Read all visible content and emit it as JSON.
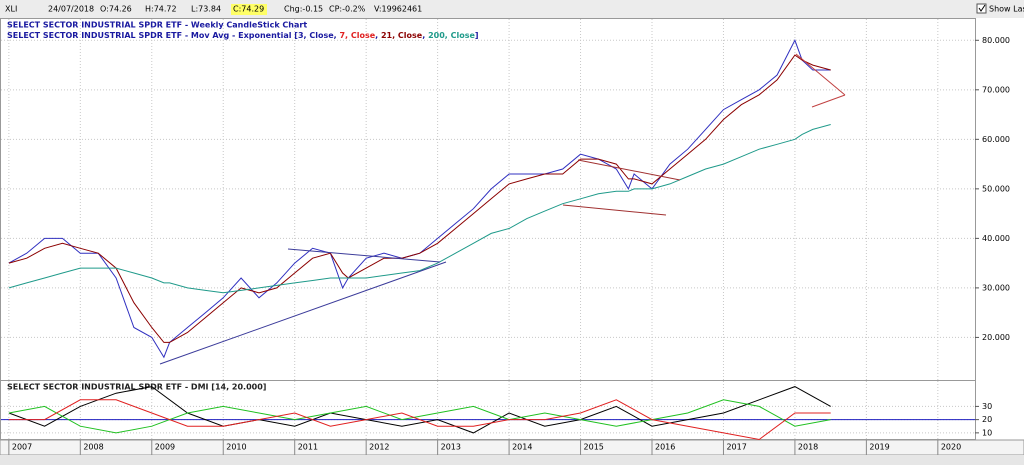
{
  "header": {
    "symbol": "XLI",
    "date": "24/07/2018",
    "open": "O:74.26",
    "high": "H:74.72",
    "low": "L:73.84",
    "close": "C:74.29",
    "change": "Chg:-0.15",
    "change_pct": "CP:-0.2%",
    "volume": "V:19962461",
    "show_last": "Show Last"
  },
  "chart_data": [
    {
      "type": "line",
      "title": "SELECT SECTOR INDUSTRIAL SPDR ETF - Weekly CandleStick Chart",
      "subtitle": [
        {
          "text": "SELECT SECTOR INDUSTRIAL SPDR ETF - Mov Avg - Exponential [",
          "color": "#1a1aa0"
        },
        {
          "text": "3, Close",
          "color": "#1a1aa0"
        },
        {
          "text": ", ",
          "color": "#1a1aa0"
        },
        {
          "text": "7, Close",
          "color": "#e02020"
        },
        {
          "text": ", ",
          "color": "#1a1aa0"
        },
        {
          "text": "21, Close",
          "color": "#8b0000"
        },
        {
          "text": ", ",
          "color": "#1a1aa0"
        },
        {
          "text": "200, Close",
          "color": "#1f9a8a"
        },
        {
          "text": "]",
          "color": "#1a1aa0"
        }
      ],
      "xlim": [
        2006.89,
        2020.52
      ],
      "ylim": [
        11.4,
        84.3
      ],
      "yticks": [
        {
          "value": 20,
          "label": "20.000"
        },
        {
          "value": 30,
          "label": "30.000"
        },
        {
          "value": 40,
          "label": "40.000"
        },
        {
          "value": 50,
          "label": "50.000"
        },
        {
          "value": 60,
          "label": "60.000"
        },
        {
          "value": 70,
          "label": "70.000"
        },
        {
          "value": 80,
          "label": "80.000"
        }
      ],
      "x": [
        2007.0,
        2007.25,
        2007.5,
        2007.75,
        2008.0,
        2008.25,
        2008.5,
        2008.75,
        2009.0,
        2009.17,
        2009.25,
        2009.5,
        2009.75,
        2010.0,
        2010.25,
        2010.5,
        2010.75,
        2011.0,
        2011.25,
        2011.5,
        2011.67,
        2011.75,
        2012.0,
        2012.25,
        2012.5,
        2012.75,
        2013.0,
        2013.25,
        2013.5,
        2013.75,
        2014.0,
        2014.25,
        2014.5,
        2014.75,
        2015.0,
        2015.25,
        2015.5,
        2015.67,
        2015.75,
        2016.0,
        2016.25,
        2016.5,
        2016.75,
        2017.0,
        2017.25,
        2017.5,
        2017.75,
        2018.0,
        2018.1,
        2018.25,
        2018.5
      ],
      "series": [
        {
          "color": "#3030c0",
          "values": [
            35,
            37,
            40,
            40,
            37,
            37,
            32,
            22,
            20,
            16,
            19,
            22,
            25,
            28,
            32,
            28,
            31,
            35,
            38,
            37,
            30,
            32,
            36,
            37,
            36,
            37,
            40,
            43,
            46,
            50,
            53,
            53,
            53,
            54,
            57,
            56,
            54,
            50,
            53,
            50,
            55,
            58,
            62,
            66,
            68,
            70,
            73,
            80,
            76,
            74,
            74
          ]
        },
        {
          "color": "#8b0000",
          "values": [
            35,
            36,
            38,
            39,
            38,
            37,
            34,
            27,
            22,
            19,
            19,
            21,
            24,
            27,
            30,
            29,
            30,
            33,
            36,
            37,
            33,
            32,
            34,
            36,
            36,
            37,
            39,
            42,
            45,
            48,
            51,
            52,
            53,
            53,
            56,
            56,
            55,
            52,
            52,
            51,
            54,
            57,
            60,
            64,
            67,
            69,
            72,
            77,
            76,
            75,
            74
          ]
        },
        {
          "color": "#1f9a8a",
          "values": [
            30,
            31,
            32,
            33,
            34,
            34,
            34,
            33,
            32,
            31,
            31,
            30,
            29.5,
            29,
            29.5,
            30,
            30.5,
            31,
            31.5,
            32,
            32,
            32,
            32,
            32.5,
            33,
            33.5,
            35,
            37,
            39,
            41,
            42,
            44,
            45.5,
            47,
            48,
            49,
            49.5,
            49.5,
            50,
            50,
            51,
            52.5,
            54,
            55,
            56.5,
            58,
            59,
            60,
            61,
            62,
            63
          ]
        }
      ]
    },
    {
      "type": "line",
      "title": "SELECT SECTOR INDUSTRIAL SPDR ETF - DMI [14, 20.000]",
      "xlim": [
        2006.89,
        2020.52
      ],
      "ylim": [
        4.6,
        49.2
      ],
      "xticks": [
        2007,
        2008,
        2009,
        2010,
        2011,
        2012,
        2013,
        2014,
        2015,
        2016,
        2017,
        2018,
        2019,
        2020
      ],
      "yticks": [
        10,
        20,
        30
      ],
      "threshold": 20,
      "threshold_color": "#2020c0",
      "x": [
        2007.0,
        2007.5,
        2008.0,
        2008.5,
        2009.0,
        2009.5,
        2010.0,
        2010.5,
        2011.0,
        2011.5,
        2012.0,
        2012.5,
        2013.0,
        2013.5,
        2014.0,
        2014.5,
        2015.0,
        2015.5,
        2016.0,
        2016.5,
        2017.0,
        2017.5,
        2018.0,
        2018.5
      ],
      "series": [
        {
          "color": "#000000",
          "values": [
            25,
            15,
            30,
            40,
            45,
            25,
            15,
            20,
            15,
            25,
            20,
            15,
            20,
            10,
            25,
            15,
            20,
            30,
            15,
            20,
            25,
            35,
            45,
            30
          ]
        },
        {
          "color": "#20c020",
          "values": [
            25,
            30,
            15,
            10,
            15,
            25,
            30,
            25,
            20,
            25,
            30,
            20,
            25,
            30,
            20,
            25,
            20,
            15,
            20,
            25,
            35,
            30,
            15,
            20
          ]
        },
        {
          "color": "#e02020",
          "values": [
            20,
            20,
            35,
            35,
            25,
            15,
            15,
            20,
            25,
            15,
            20,
            25,
            15,
            15,
            20,
            20,
            25,
            35,
            20,
            15,
            10,
            5,
            25,
            25
          ]
        }
      ]
    }
  ]
}
